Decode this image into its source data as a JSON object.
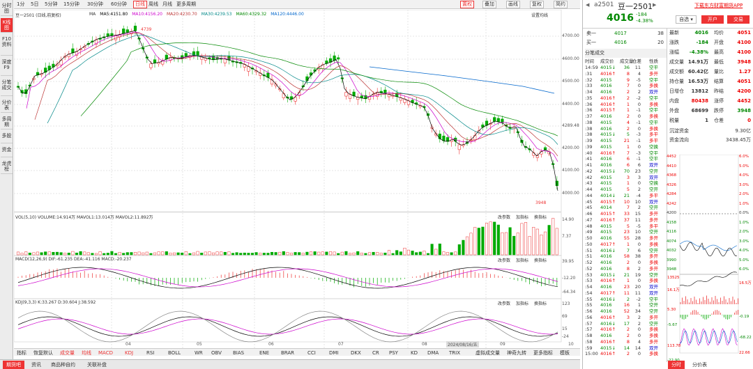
{
  "leftbar": {
    "items": [
      "分时图",
      "K线图",
      "F10资料",
      "深度F9",
      "分笔成交",
      "分价表",
      "多周期",
      "多股",
      "资金",
      "龙虎榜"
    ]
  },
  "toolbar": {
    "periods": [
      "1分",
      "5日",
      "5分钟",
      "15分钟",
      "30分钟",
      "60分钟",
      "日线",
      "周线",
      "月线",
      "更多周期"
    ],
    "active": "日线",
    "right": [
      "叠加",
      "画线",
      "复权",
      "简约"
    ],
    "dropdown": "置权"
  },
  "chart": {
    "title": "豆一2501 (日线,前复权)",
    "ma_labels": [
      "MA",
      "MA5:4151.80",
      "MA10:4156.20",
      "MA20:4230.70",
      "MA30:4239.53",
      "MA60:4329.32",
      "MA120:4446.00"
    ],
    "settings": "设置均线",
    "high_label": "4739",
    "low_label": "3948",
    "price_ticks": [
      "4700.00",
      "4600.00",
      "4500.00",
      "4400.00",
      "4289.48",
      "4200.00",
      "4100.00",
      "4000.00"
    ],
    "vol_label": "VOL(5,10)  VOLUME:14.914万  MAVOL1:13.014万  MAVOL2:11.892万",
    "vol_ticks": [
      "14.90",
      "7.37"
    ],
    "macd_label": "MACD(12,26,9)  DIF:-61.235  DEA:-41.116  MACD:-20.237",
    "macd_ticks": [
      "39.95",
      "-12.20",
      "-64.34"
    ],
    "kdj_label": "KDJ(9,3,3)  K:33.267  D:30.604  J:38.592",
    "kdj_ticks": [
      "123",
      "69",
      "15",
      "-24"
    ],
    "pane_buttons": [
      "改参数",
      "加指标",
      "换指标"
    ],
    "months": [
      "04",
      "05",
      "06",
      "07",
      "08",
      "09",
      "10"
    ],
    "date_cursor": "2024/08/16/五"
  },
  "bottom_tabs": [
    "指标",
    "恢复默认",
    "成交量",
    "均线",
    "MACD",
    "KDJ",
    "RSI",
    "BOLL",
    "WR",
    "OBV",
    "BIAS",
    "ENE",
    "BRAR",
    "CCI",
    "DMI",
    "DKX",
    "CR",
    "PSY",
    "KD",
    "DMA",
    "TRIX",
    "虚拟成交量",
    "神奇九转",
    "更多指标",
    "模板"
  ],
  "footer": [
    "期货吧",
    "资讯",
    "商品种自约",
    "关联补盘"
  ],
  "quote": {
    "code": "a2501",
    "name": "豆一2501",
    "price": "4016",
    "change": "-184",
    "pct": "-4.38%",
    "self": "自选",
    "open_btn": "开户",
    "trade_btn": "交易",
    "download": "下载东方财富期货APP",
    "sell1": [
      "卖一",
      "4017",
      "38"
    ],
    "buy1": [
      "买一",
      "4016",
      "20"
    ]
  },
  "stats": [
    [
      "最新",
      "4016",
      "均价",
      "4051"
    ],
    [
      "涨跌",
      "-184",
      "开盘",
      "4100"
    ],
    [
      "涨幅",
      "-4.38%",
      "最高",
      "4100"
    ],
    [
      "成交量",
      "14.91万",
      "最低",
      "3948"
    ],
    [
      "成交额",
      "60.42亿",
      "量比",
      "1.27"
    ],
    [
      "持仓量",
      "16.53万",
      "结算",
      "4051"
    ],
    [
      "日增仓",
      "13812",
      "昨结",
      "4200"
    ],
    [
      "内盘",
      "80438",
      "涨停",
      "4452"
    ],
    [
      "外盘",
      "68699",
      "跌停",
      "3948"
    ],
    [
      "税量",
      "1",
      "仓差",
      "0"
    ]
  ],
  "fund": [
    [
      "沉淀资金",
      "9.30亿"
    ],
    [
      "资金流向",
      "3438.45万"
    ]
  ],
  "ticks_title": [
    "分笔成交",
    "时间",
    "成交价",
    "成交量",
    "仓差",
    "性质"
  ],
  "ticks": [
    [
      "14:59",
      "4015↓",
      "36",
      "11",
      "空平"
    ],
    [
      ":31",
      "4016↑",
      "8",
      "4",
      "多开"
    ],
    [
      ":32",
      "4015",
      "9",
      "-5",
      "空平"
    ],
    [
      ":33",
      "4016",
      "7",
      "0",
      "多换"
    ],
    [
      ":34",
      "4016",
      "2",
      "2",
      "双开"
    ],
    [
      ":35",
      "4016↑",
      "2",
      "-2",
      "空平"
    ],
    [
      ":36",
      "4016↑",
      "1",
      "0",
      "多换"
    ],
    [
      ":36",
      "4015↑",
      "1",
      "-1",
      "空平"
    ],
    [
      ":37",
      "4016",
      "2",
      "0",
      "多换"
    ],
    [
      ":38",
      "4015",
      "4",
      "-1",
      "空平"
    ],
    [
      ":38",
      "4016",
      "2",
      "0",
      "多换"
    ],
    [
      ":38",
      "4015↓",
      "5",
      "-3",
      "多平"
    ],
    [
      ":39",
      "4015",
      "21",
      "-1",
      "多平"
    ],
    [
      ":39",
      "4015",
      "1",
      "0",
      "空换"
    ],
    [
      ":40",
      "4016↑",
      "7",
      "-3",
      "空平"
    ],
    [
      ":41",
      "4016",
      "6",
      "-1",
      "空平"
    ],
    [
      ":41",
      "4016",
      "6",
      "6",
      "双开"
    ],
    [
      ":42",
      "4015↓",
      "70",
      "23",
      "空开"
    ],
    [
      ":42",
      "4015",
      "3",
      "3",
      "双开"
    ],
    [
      ":43",
      "4015",
      "1",
      "0",
      "空换"
    ],
    [
      ":44",
      "4015",
      "5",
      "2",
      "空开"
    ],
    [
      ":44",
      "4014↓",
      "21",
      "-4",
      "多平"
    ],
    [
      ":45",
      "4015↑",
      "10",
      "10",
      "双开"
    ],
    [
      ":45",
      "4014",
      "7",
      "2",
      "空开"
    ],
    [
      ":46",
      "4015↑",
      "33",
      "15",
      "多开"
    ],
    [
      ":47",
      "4016↑",
      "37",
      "11",
      "多开"
    ],
    [
      ":48",
      "4015",
      "5",
      "-5",
      "多平"
    ],
    [
      ":49",
      "4015",
      "23",
      "10",
      "空开"
    ],
    [
      ":50",
      "4016",
      "55",
      "28",
      "多开"
    ],
    [
      ":50",
      "4017↑",
      "1",
      "0",
      "多换"
    ],
    [
      ":51",
      "4016↓",
      "7",
      "6",
      "空开"
    ],
    [
      ":51",
      "4016",
      "58",
      "38",
      "多开"
    ],
    [
      ":52",
      "4016",
      "2",
      "0",
      "多换"
    ],
    [
      ":52",
      "4016",
      "8",
      "2",
      "多开"
    ],
    [
      ":53",
      "4015↓",
      "21",
      "19",
      "空开"
    ],
    [
      ":53",
      "4016↑",
      "1",
      "0",
      "多换"
    ],
    [
      ":54",
      "4016",
      "23",
      "20",
      "双开"
    ],
    [
      ":54",
      "4017↑",
      "11",
      "11",
      "双开"
    ],
    [
      ":55",
      "4016↓",
      "2",
      "-2",
      "空平"
    ],
    [
      ":55",
      "4016",
      "16",
      "1",
      "空开"
    ],
    [
      ":56",
      "4016",
      "52",
      "34",
      "空开"
    ],
    [
      ":56",
      "4016↑",
      "3",
      "2",
      "多开"
    ],
    [
      ":57",
      "4016↓",
      "17",
      "2",
      "空开"
    ],
    [
      ":57",
      "4016↑",
      "2",
      "0",
      "多换"
    ],
    [
      ":58",
      "4016",
      "2",
      "0",
      "多换"
    ],
    [
      ":58",
      "4016↑",
      "8",
      "4",
      "多开"
    ],
    [
      ":59",
      "4015↓",
      "14",
      "14",
      "双开"
    ],
    [
      "15:00",
      "4016↑",
      "2",
      "0",
      "多换"
    ]
  ],
  "mini": {
    "ticks_left": [
      "4452",
      "4410",
      "4368",
      "4326",
      "4284",
      "4242",
      "4200",
      "4158",
      "4116",
      "4074",
      "4032",
      "3990",
      "3948"
    ],
    "ticks_right": [
      "6.0%",
      "5.0%",
      "4.0%",
      "3.0%",
      "2.0%",
      "1.0%",
      "0.0%",
      "1.0%",
      "2.0%",
      "3.0%",
      "4.0%",
      "5.0%",
      "6.0%"
    ],
    "vol_ticks": [
      "13525",
      "16.5万",
      "16.1万"
    ],
    "ind_ticks": [
      "5.30",
      "-0.19",
      "-5.67",
      "-68.22",
      "113.78",
      "22.66",
      "-22.90"
    ],
    "tabs": [
      "分时",
      "分价表"
    ]
  }
}
